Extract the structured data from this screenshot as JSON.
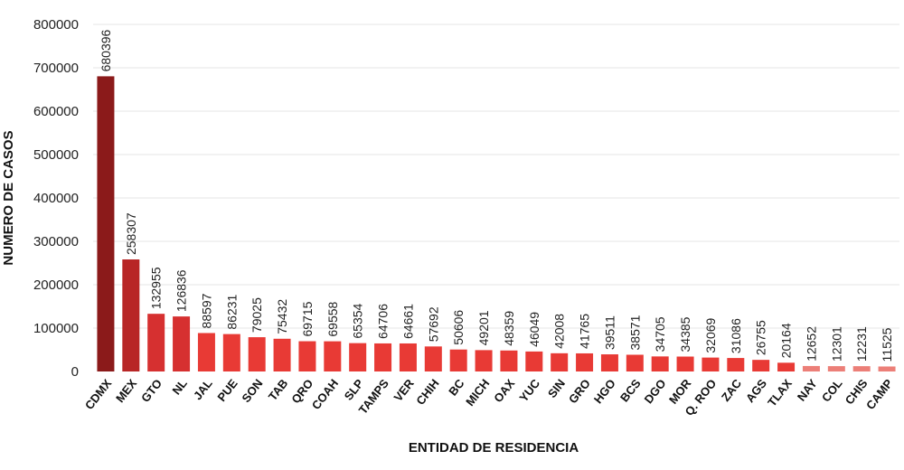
{
  "chart_data": {
    "type": "bar",
    "title": "",
    "xlabel": "ENTIDAD DE RESIDENCIA",
    "ylabel": "NUMERO DE CASOS",
    "ylim": [
      0,
      800000
    ],
    "yticks": [
      0,
      100000,
      200000,
      300000,
      400000,
      500000,
      600000,
      700000,
      800000
    ],
    "ytick_labels": [
      "0",
      "100000",
      "200000",
      "300000",
      "400000",
      "500000",
      "600000",
      "700000",
      "800000"
    ],
    "grid": true,
    "categories": [
      "CDMX",
      "MEX",
      "GTO",
      "NL",
      "JAL",
      "PUE",
      "SON",
      "TAB",
      "QRO",
      "COAH",
      "SLP",
      "TAMPS",
      "VER",
      "CHIH",
      "BC",
      "MICH",
      "OAX",
      "YUC",
      "SIN",
      "GRO",
      "HGO",
      "BCS",
      "DGO",
      "MOR",
      "Q. ROO",
      "ZAC",
      "AGS",
      "TLAX",
      "NAY",
      "COL",
      "CHIS",
      "CAMP"
    ],
    "values": [
      680396,
      258307,
      132955,
      126836,
      88597,
      86231,
      79025,
      75432,
      69715,
      69558,
      65354,
      64706,
      64661,
      57692,
      50606,
      49201,
      48359,
      46049,
      42008,
      41765,
      39511,
      38571,
      34705,
      34385,
      32069,
      31086,
      26755,
      20164,
      12652,
      12301,
      12231,
      11525
    ],
    "value_labels": [
      "680396",
      "258307",
      "132955",
      "126836",
      "88597",
      "86231",
      "79025",
      "75432",
      "69715",
      "69558",
      "65354",
      "64706",
      "64661",
      "57692",
      "50606",
      "49201",
      "48359",
      "46049",
      "42008",
      "41765",
      "39511",
      "38571",
      "34705",
      "34385",
      "32069",
      "31086",
      "26755",
      "20164",
      "12652",
      "12301",
      "12231",
      "11525"
    ],
    "colors": {
      "top": "#8b1a1a",
      "second": "#b82626",
      "high": "#d63030",
      "mid": "#e83a35",
      "low": "#ec7f78"
    }
  }
}
